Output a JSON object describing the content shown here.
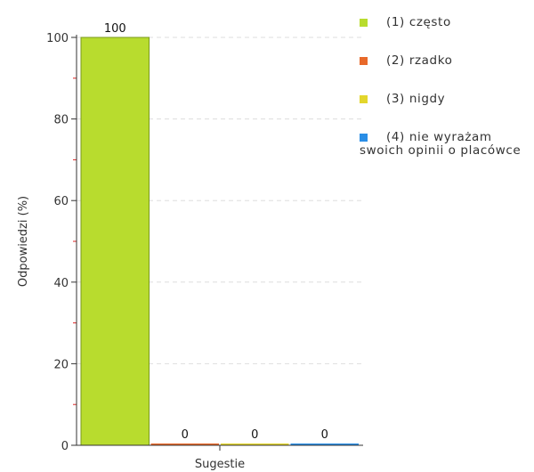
{
  "chart_data": {
    "type": "bar",
    "categories": [
      "Sugestie"
    ],
    "series": [
      {
        "name": "(1) często",
        "values": [
          100
        ],
        "color": "#b8dc2e"
      },
      {
        "name": "(2) rzadko",
        "values": [
          0
        ],
        "color": "#e8692a"
      },
      {
        "name": "(3) nigdy",
        "values": [
          0
        ],
        "color": "#e3d62c"
      },
      {
        "name": "(4) nie wyrażam swoich opinii o placówce",
        "values": [
          0
        ],
        "color": "#2a8ee6"
      }
    ],
    "data_labels": [
      "100",
      "0",
      "0",
      "0"
    ],
    "title": "",
    "xlabel": "Sugestie",
    "ylabel": "Odpowiedzi (%)",
    "ylim": [
      0,
      100
    ],
    "yticks": [
      0,
      20,
      40,
      60,
      80,
      100
    ],
    "grid": true,
    "legend_position": "right"
  }
}
